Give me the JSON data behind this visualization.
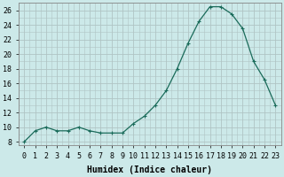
{
  "x": [
    0,
    1,
    2,
    3,
    4,
    5,
    6,
    7,
    8,
    9,
    10,
    11,
    12,
    13,
    14,
    15,
    16,
    17,
    18,
    19,
    20,
    21,
    22,
    23
  ],
  "y": [
    8.0,
    9.5,
    10.0,
    9.5,
    9.5,
    10.0,
    9.5,
    9.2,
    9.2,
    9.2,
    10.5,
    11.5,
    13.0,
    15.0,
    18.0,
    21.5,
    24.5,
    26.5,
    26.5,
    25.5,
    23.5,
    19.0,
    16.5,
    13.0
  ],
  "line_color": "#1a6b5a",
  "marker": "+",
  "marker_size": 3,
  "marker_linewidth": 0.8,
  "line_width": 0.9,
  "bg_color": "#cce9e9",
  "grid_color_major": "#b0c4c4",
  "grid_color_minor": "#b0c4c4",
  "xlabel": "Humidex (Indice chaleur)",
  "xlim": [
    -0.5,
    23.5
  ],
  "ylim": [
    7.5,
    27
  ],
  "yticks": [
    8,
    10,
    12,
    14,
    16,
    18,
    20,
    22,
    24,
    26
  ],
  "xticks": [
    0,
    1,
    2,
    3,
    4,
    5,
    6,
    7,
    8,
    9,
    10,
    11,
    12,
    13,
    14,
    15,
    16,
    17,
    18,
    19,
    20,
    21,
    22,
    23
  ],
  "font_size_label": 7,
  "font_size_tick": 6
}
